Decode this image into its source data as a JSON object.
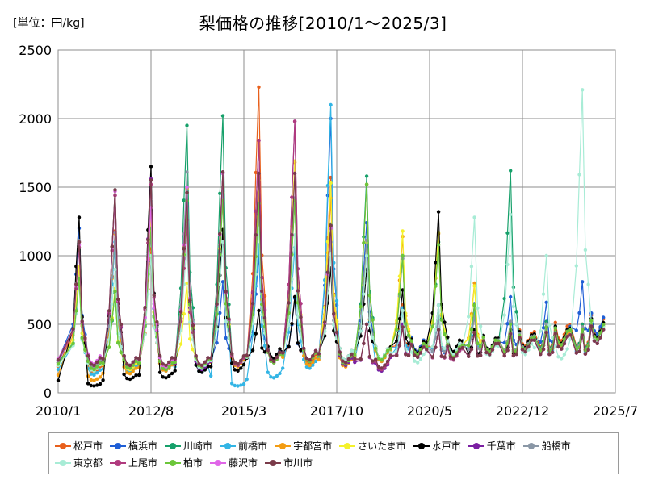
{
  "unit_label": "[単位：円/kg]",
  "chart_data": {
    "type": "line",
    "title": "梨価格の推移[2010/1～2025/3]",
    "xlabel": "",
    "ylabel": "",
    "ylim": [
      0,
      2500
    ],
    "yticks": [
      "0",
      "500",
      "1000",
      "1500",
      "2000",
      "2500"
    ],
    "xlim": [
      "2010-01",
      "2025-07"
    ],
    "xticks": [
      "2010/1",
      "2012/8",
      "2015/3",
      "2017/10",
      "2020/5",
      "2022/12",
      "2025/7"
    ],
    "grid": true,
    "legend_position": "bottom",
    "peak_months": [
      "2010-08",
      "2011-08",
      "2012-08",
      "2013-08",
      "2014-08",
      "2015-08",
      "2016-08",
      "2017-08",
      "2018-08",
      "2019-08",
      "2020-08",
      "2021-08",
      "2022-08",
      "2023-08",
      "2024-08"
    ],
    "series": [
      {
        "name": "松戸市",
        "color": "#e8601c",
        "peaks": [
          1100,
          1180,
          1050,
          1480,
          1500,
          2230,
          700,
          1570,
          1520,
          640,
          640,
          560,
          430,
          520,
          500
        ],
        "lows": [
          150,
          170,
          160,
          175,
          200,
          220,
          220,
          200,
          240,
          300,
          260,
          300,
          340,
          380,
          420
        ]
      },
      {
        "name": "横浜市",
        "color": "#1f5fd6",
        "peaks": [
          1200,
          1100,
          1330,
          1500,
          810,
          1000,
          690,
          2000,
          1240,
          600,
          560,
          650,
          700,
          660,
          810
        ],
        "lows": [
          200,
          200,
          180,
          190,
          200,
          240,
          230,
          210,
          230,
          300,
          260,
          300,
          300,
          350,
          430
        ]
      },
      {
        "name": "川崎市",
        "color": "#16a06a",
        "peaks": [
          830,
          730,
          1220,
          1950,
          2020,
          1380,
          1410,
          1230,
          1580,
          1000,
          1100,
          640,
          1620,
          520,
          500
        ],
        "lows": [
          180,
          190,
          170,
          200,
          210,
          220,
          230,
          200,
          240,
          280,
          260,
          300,
          300,
          360,
          400
        ]
      },
      {
        "name": "前橋市",
        "color": "#33b5e5",
        "peaks": [
          850,
          1100,
          1200,
          1490,
          1610,
          1080,
          1060,
          2100,
          1110,
          620,
          640,
          580,
          500,
          480,
          460
        ],
        "lows": [
          130,
          150,
          160,
          150,
          50,
          110,
          180,
          220,
          160,
          280,
          260,
          300,
          320,
          330,
          360
        ]
      },
      {
        "name": "宇都宮市",
        "color": "#f39c12",
        "peaks": [
          1100,
          1160,
          1290,
          1490,
          1500,
          1460,
          1680,
          1420,
          1110,
          1140,
          1160,
          800,
          520,
          500,
          480
        ],
        "lows": [
          90,
          140,
          160,
          170,
          190,
          220,
          200,
          190,
          230,
          270,
          260,
          300,
          320,
          340,
          380
        ]
      },
      {
        "name": "さいたま市",
        "color": "#f4f12b",
        "peaks": [
          920,
          760,
          1270,
          800,
          1460,
          1550,
          1690,
          1530,
          1100,
          1180,
          1170,
          780,
          520,
          500,
          470
        ],
        "lows": [
          160,
          170,
          180,
          190,
          210,
          230,
          230,
          220,
          240,
          280,
          270,
          300,
          320,
          350,
          390
        ]
      },
      {
        "name": "水戸市",
        "color": "#000000",
        "peaks": [
          1280,
          1480,
          1650,
          1460,
          1190,
          600,
          700,
          910,
          900,
          750,
          1320,
          460,
          460,
          480,
          460
        ],
        "lows": [
          50,
          100,
          110,
          150,
          160,
          250,
          230,
          240,
          250,
          290,
          300,
          310,
          330,
          360,
          400
        ]
      },
      {
        "name": "千葉市",
        "color": "#7b1fa2",
        "peaks": [
          1100,
          1440,
          1560,
          1360,
          1600,
          1840,
          1980,
          1220,
          500,
          500,
          460,
          440,
          430,
          440,
          420
        ],
        "lows": [
          180,
          180,
          170,
          170,
          200,
          220,
          240,
          200,
          160,
          260,
          240,
          280,
          300,
          320,
          360
        ]
      },
      {
        "name": "船橋市",
        "color": "#8a97a6",
        "peaks": [
          1110,
          1170,
          1400,
          1610,
          1500,
          1300,
          1420,
          1100,
          1110,
          980,
          560,
          560,
          520,
          500,
          480
        ],
        "lows": [
          190,
          190,
          200,
          200,
          210,
          230,
          230,
          220,
          240,
          280,
          270,
          300,
          320,
          350,
          390
        ]
      },
      {
        "name": "東京都",
        "color": "#a8ecd6",
        "peaks": [
          800,
          900,
          1000,
          1100,
          1100,
          1200,
          1150,
          1010,
          1000,
          600,
          640,
          1280,
          1300,
          1000,
          2210
        ],
        "lows": [
          160,
          180,
          190,
          180,
          200,
          220,
          230,
          240,
          250,
          220,
          280,
          270,
          280,
          250,
          380
        ]
      },
      {
        "name": "上尾市",
        "color": "#b03a7e",
        "peaks": [
          1060,
          1440,
          1520,
          1260,
          1610,
          1840,
          1980,
          1200,
          500,
          480,
          460,
          440,
          430,
          440,
          420
        ],
        "lows": [
          200,
          200,
          190,
          200,
          200,
          230,
          240,
          220,
          170,
          270,
          240,
          280,
          300,
          320,
          360
        ]
      },
      {
        "name": "柏市",
        "color": "#6cc63a",
        "peaks": [
          830,
          740,
          1200,
          1400,
          1400,
          1380,
          1400,
          1220,
          1520,
          1000,
          1080,
          640,
          500,
          480,
          460
        ],
        "lows": [
          170,
          180,
          170,
          190,
          210,
          220,
          230,
          210,
          240,
          280,
          260,
          300,
          310,
          350,
          390
        ]
      },
      {
        "name": "藤沢市",
        "color": "#e066e8",
        "peaks": [
          1080,
          1470,
          1350,
          1500,
          1600,
          1600,
          1600,
          1200,
          500,
          480,
          460,
          440,
          430,
          440,
          420
        ],
        "lows": [
          210,
          200,
          190,
          200,
          210,
          230,
          240,
          220,
          180,
          260,
          250,
          280,
          300,
          320,
          360
        ]
      },
      {
        "name": "市川市",
        "color": "#7a3b4a",
        "peaks": [
          1100,
          1480,
          1550,
          1460,
          1610,
          1600,
          1600,
          1220,
          500,
          480,
          460,
          440,
          430,
          440,
          420
        ],
        "lows": [
          200,
          200,
          200,
          200,
          210,
          230,
          240,
          220,
          180,
          260,
          250,
          280,
          300,
          320,
          360
        ]
      }
    ]
  }
}
